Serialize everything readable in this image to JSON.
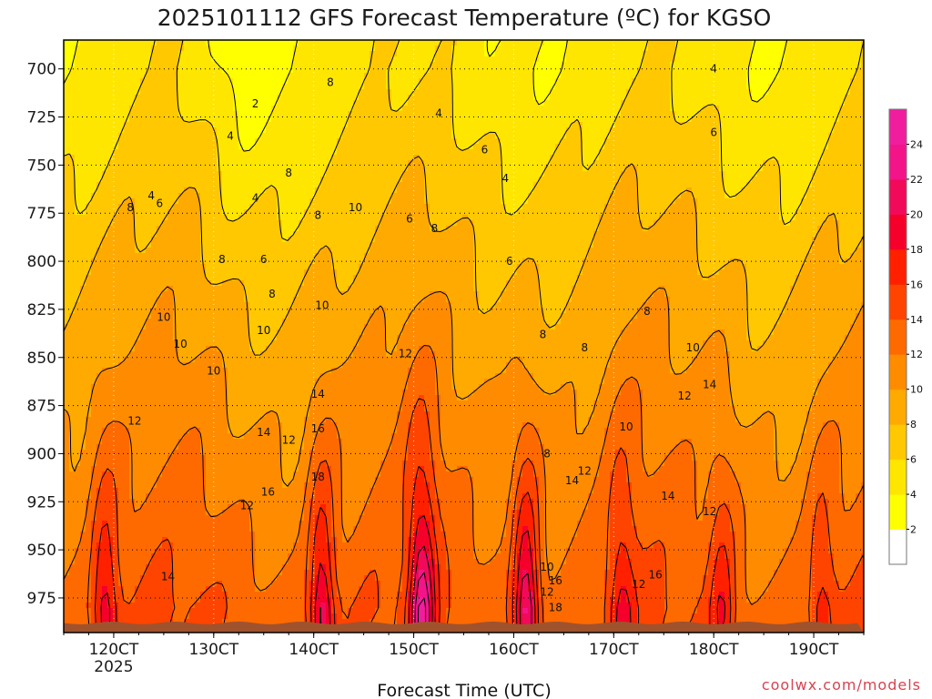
{
  "chart_data": {
    "type": "heatmap",
    "title": "2025101112 GFS Forecast Temperature (ºC) for KGSO",
    "xlabel": "Forecast Time (UTC)",
    "ylabel": "",
    "x_ticks": [
      {
        "label": "120CT",
        "sub": "2025"
      },
      {
        "label": "130CT",
        "sub": ""
      },
      {
        "label": "140CT",
        "sub": ""
      },
      {
        "label": "150CT",
        "sub": ""
      },
      {
        "label": "160CT",
        "sub": ""
      },
      {
        "label": "170CT",
        "sub": ""
      },
      {
        "label": "180CT",
        "sub": ""
      },
      {
        "label": "190CT",
        "sub": ""
      }
    ],
    "xlim_hours": [
      -12,
      180
    ],
    "y_ticks": [
      700,
      725,
      750,
      775,
      800,
      825,
      850,
      875,
      900,
      925,
      950,
      975
    ],
    "ylim_hpa": [
      685,
      993
    ],
    "surface_pressure_hpa": 988,
    "colorbar": {
      "levels": [
        2,
        4,
        6,
        8,
        10,
        12,
        14,
        16,
        18,
        20,
        22,
        24
      ],
      "colors": [
        "#ffffff",
        "#ffff00",
        "#ffe600",
        "#ffc800",
        "#ffaa00",
        "#ff8c00",
        "#ff6a00",
        "#ff4400",
        "#ff2000",
        "#f5002a",
        "#f10a5a",
        "#f3148a",
        "#f01e9e"
      ]
    },
    "warm_pulses": [
      {
        "time_hours": -2,
        "peak_temp_c": 20
      },
      {
        "time_hours": 50,
        "peak_temp_c": 22
      },
      {
        "time_hours": 74,
        "peak_temp_c": 24
      },
      {
        "time_hours": 99,
        "peak_temp_c": 24
      },
      {
        "time_hours": 122,
        "peak_temp_c": 19
      },
      {
        "time_hours": 146,
        "peak_temp_c": 19
      },
      {
        "time_hours": 170,
        "peak_temp_c": 18
      }
    ],
    "contour_labels": [
      {
        "label": "2",
        "t": 34,
        "p": 718
      },
      {
        "label": "4",
        "t": 28,
        "p": 735
      },
      {
        "label": "4",
        "t": 9,
        "p": 766
      },
      {
        "label": "4",
        "t": 34,
        "p": 767
      },
      {
        "label": "6",
        "t": 11,
        "p": 770
      },
      {
        "label": "8",
        "t": 4,
        "p": 772
      },
      {
        "label": "8",
        "t": 52,
        "p": 707
      },
      {
        "label": "4",
        "t": 78,
        "p": 723
      },
      {
        "label": "6",
        "t": 89,
        "p": 742
      },
      {
        "label": "4",
        "t": 94,
        "p": 757
      },
      {
        "label": "4",
        "t": 144,
        "p": 700
      },
      {
        "label": "6",
        "t": 144,
        "p": 733
      },
      {
        "label": "8",
        "t": 42,
        "p": 754
      },
      {
        "label": "8",
        "t": 26,
        "p": 799
      },
      {
        "label": "6",
        "t": 36,
        "p": 799
      },
      {
        "label": "8",
        "t": 49,
        "p": 776
      },
      {
        "label": "10",
        "t": 58,
        "p": 772
      },
      {
        "label": "6",
        "t": 71,
        "p": 778
      },
      {
        "label": "8",
        "t": 77,
        "p": 783
      },
      {
        "label": "6",
        "t": 95,
        "p": 800
      },
      {
        "label": "8",
        "t": 38,
        "p": 817
      },
      {
        "label": "10",
        "t": 50,
        "p": 823
      },
      {
        "label": "10",
        "t": 12,
        "p": 829
      },
      {
        "label": "10",
        "t": 36,
        "p": 836
      },
      {
        "label": "10",
        "t": 16,
        "p": 843
      },
      {
        "label": "10",
        "t": 24,
        "p": 857
      },
      {
        "label": "8",
        "t": 103,
        "p": 838
      },
      {
        "label": "8",
        "t": 113,
        "p": 845
      },
      {
        "label": "8",
        "t": 128,
        "p": 826
      },
      {
        "label": "10",
        "t": 139,
        "p": 845
      },
      {
        "label": "12",
        "t": 70,
        "p": 848
      },
      {
        "label": "14",
        "t": 143,
        "p": 864
      },
      {
        "label": "12",
        "t": 137,
        "p": 870
      },
      {
        "label": "14",
        "t": 49,
        "p": 869
      },
      {
        "label": "12",
        "t": 5,
        "p": 883
      },
      {
        "label": "14",
        "t": 36,
        "p": 889
      },
      {
        "label": "12",
        "t": 42,
        "p": 893
      },
      {
        "label": "16",
        "t": 49,
        "p": 887
      },
      {
        "label": "10",
        "t": 123,
        "p": 886
      },
      {
        "label": "8",
        "t": 104,
        "p": 900
      },
      {
        "label": "18",
        "t": 49,
        "p": 912
      },
      {
        "label": "14",
        "t": 110,
        "p": 914
      },
      {
        "label": "12",
        "t": 113,
        "p": 909
      },
      {
        "label": "16",
        "t": 37,
        "p": 920
      },
      {
        "label": "12",
        "t": 32,
        "p": 927
      },
      {
        "label": "14",
        "t": 133,
        "p": 922
      },
      {
        "label": "12",
        "t": 143,
        "p": 930
      },
      {
        "label": "14",
        "t": 13,
        "p": 964
      },
      {
        "label": "10",
        "t": 104,
        "p": 959
      },
      {
        "label": "16",
        "t": 106,
        "p": 966
      },
      {
        "label": "12",
        "t": 104,
        "p": 972
      },
      {
        "label": "16",
        "t": 130,
        "p": 963
      },
      {
        "label": "12",
        "t": 126,
        "p": 968
      },
      {
        "label": "18",
        "t": 106,
        "p": 980
      }
    ]
  },
  "credit": "coolwx.com/models"
}
